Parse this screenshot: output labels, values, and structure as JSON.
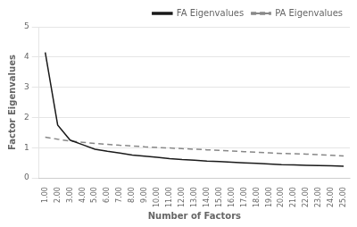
{
  "chart_data": {
    "type": "line",
    "xlabel": "Number of Factors",
    "ylabel": "Factor Eigenvalues",
    "categories": [
      "1.00",
      "2.00",
      "3.00",
      "4.00",
      "5.00",
      "6.00",
      "7.00",
      "8.00",
      "9.00",
      "10.00",
      "11.00",
      "12.00",
      "13.00",
      "14.00",
      "15.00",
      "16.00",
      "17.00",
      "18.00",
      "19.00",
      "20.00",
      "21.00",
      "22.00",
      "23.00",
      "24.00",
      "25.00"
    ],
    "series": [
      {
        "name": "FA Eigenvalues",
        "color": "#1a1a1a",
        "line_style": "solid",
        "values": [
          4.15,
          1.75,
          1.25,
          1.1,
          0.95,
          0.88,
          0.82,
          0.76,
          0.72,
          0.68,
          0.64,
          0.61,
          0.59,
          0.56,
          0.54,
          0.52,
          0.5,
          0.48,
          0.46,
          0.44,
          0.43,
          0.42,
          0.41,
          0.4,
          0.39
        ]
      },
      {
        "name": "PA Eigenvalues",
        "color": "#888888",
        "line_style": "dashed",
        "values": [
          1.35,
          1.28,
          1.22,
          1.18,
          1.14,
          1.11,
          1.08,
          1.06,
          1.03,
          1.01,
          0.99,
          0.97,
          0.95,
          0.93,
          0.91,
          0.89,
          0.87,
          0.85,
          0.83,
          0.81,
          0.8,
          0.79,
          0.77,
          0.75,
          0.73
        ]
      }
    ],
    "ylim": [
      0,
      5
    ],
    "yticks": [
      0,
      1,
      2,
      3,
      4,
      5
    ],
    "grid": "y",
    "legend": "upper right"
  }
}
